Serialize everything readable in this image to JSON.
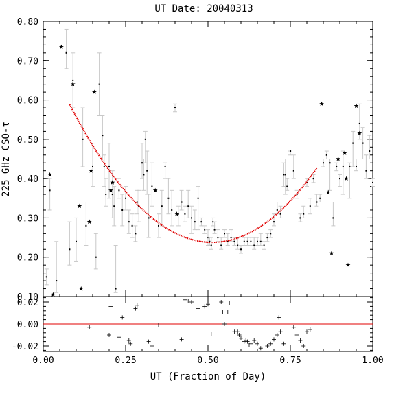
{
  "chart_data": [
    {
      "type": "scatter",
      "title": "UT Date: 20040313",
      "ylabel": "225 GHz CSO-τ",
      "xlabel": "",
      "xlim": [
        0.0,
        1.0
      ],
      "ylim": [
        0.1,
        0.8
      ],
      "y_ticks": [
        "0.10",
        "0.20",
        "0.30",
        "0.40",
        "0.50",
        "0.60",
        "0.70",
        "0.80"
      ],
      "y_tick_values": [
        0.1,
        0.2,
        0.3,
        0.4,
        0.5,
        0.6,
        0.7,
        0.8
      ],
      "series": [
        {
          "marker": "dot-with-errorbar",
          "points": [
            [
              0.01,
              0.15,
              0.13,
              0.17
            ],
            [
              0.02,
              0.37,
              0.32,
              0.4
            ],
            [
              0.04,
              0.14,
              0.11,
              0.24
            ],
            [
              0.07,
              0.72,
              0.68,
              0.78
            ],
            [
              0.08,
              0.22,
              0.18,
              0.29
            ],
            [
              0.09,
              0.65,
              0.58,
              0.72
            ],
            [
              0.1,
              0.24,
              0.19,
              0.3
            ],
            [
              0.12,
              0.5,
              0.43,
              0.58
            ],
            [
              0.13,
              0.28,
              0.23,
              0.34
            ],
            [
              0.15,
              0.43,
              0.38,
              0.49
            ],
            [
              0.16,
              0.2,
              0.17,
              0.26
            ],
            [
              0.17,
              0.64,
              0.56,
              0.72
            ],
            [
              0.18,
              0.51,
              0.45,
              0.56
            ],
            [
              0.185,
              0.43,
              0.38,
              0.46
            ],
            [
              0.19,
              0.36,
              0.33,
              0.4
            ],
            [
              0.2,
              0.43,
              0.35,
              0.49
            ],
            [
              0.21,
              0.36,
              0.3,
              0.42
            ],
            [
              0.215,
              0.33,
              0.28,
              0.38
            ],
            [
              0.22,
              0.12,
              0.11,
              0.23
            ],
            [
              0.23,
              0.37,
              0.35,
              0.4
            ],
            [
              0.24,
              0.32,
              0.28,
              0.36
            ],
            [
              0.25,
              0.35,
              0.32,
              0.38
            ],
            [
              0.26,
              0.29,
              0.26,
              0.32
            ],
            [
              0.27,
              0.28,
              0.25,
              0.31
            ],
            [
              0.28,
              0.26,
              0.24,
              0.28
            ],
            [
              0.285,
              0.34,
              0.31,
              0.37
            ],
            [
              0.29,
              0.33,
              0.29,
              0.37
            ],
            [
              0.3,
              0.44,
              0.4,
              0.49
            ],
            [
              0.305,
              0.41,
              0.37,
              0.45
            ],
            [
              0.31,
              0.5,
              0.44,
              0.52
            ],
            [
              0.315,
              0.42,
              0.36,
              0.47
            ],
            [
              0.32,
              0.3,
              0.25,
              0.36
            ],
            [
              0.33,
              0.38,
              0.33,
              0.44
            ],
            [
              0.35,
              0.28,
              0.25,
              0.31
            ],
            [
              0.36,
              0.33,
              0.28,
              0.37
            ],
            [
              0.37,
              0.43,
              0.4,
              0.44
            ],
            [
              0.38,
              0.35,
              0.31,
              0.4
            ],
            [
              0.39,
              0.32,
              0.28,
              0.37
            ],
            [
              0.4,
              0.58,
              0.57,
              0.59
            ],
            [
              0.41,
              0.31,
              0.28,
              0.33
            ],
            [
              0.42,
              0.34,
              0.32,
              0.37
            ],
            [
              0.43,
              0.31,
              0.29,
              0.33
            ],
            [
              0.44,
              0.33,
              0.3,
              0.37
            ],
            [
              0.45,
              0.3,
              0.26,
              0.33
            ],
            [
              0.46,
              0.29,
              0.27,
              0.32
            ],
            [
              0.47,
              0.35,
              0.27,
              0.38
            ],
            [
              0.48,
              0.29,
              0.28,
              0.3
            ],
            [
              0.49,
              0.27,
              0.26,
              0.28
            ],
            [
              0.5,
              0.25,
              0.23,
              0.27
            ],
            [
              0.505,
              0.24,
              0.23,
              0.25
            ],
            [
              0.51,
              0.23,
              0.22,
              0.25
            ],
            [
              0.515,
              0.29,
              0.28,
              0.3
            ],
            [
              0.52,
              0.27,
              0.26,
              0.29
            ],
            [
              0.53,
              0.25,
              0.24,
              0.27
            ],
            [
              0.54,
              0.23,
              0.22,
              0.25
            ],
            [
              0.55,
              0.26,
              0.25,
              0.27
            ],
            [
              0.56,
              0.24,
              0.23,
              0.26
            ],
            [
              0.57,
              0.25,
              0.24,
              0.27
            ],
            [
              0.58,
              0.24,
              0.23,
              0.25
            ],
            [
              0.59,
              0.23,
              0.22,
              0.25
            ],
            [
              0.6,
              0.22,
              0.21,
              0.23
            ],
            [
              0.61,
              0.24,
              0.23,
              0.25
            ],
            [
              0.62,
              0.24,
              0.23,
              0.25
            ],
            [
              0.63,
              0.24,
              0.23,
              0.25
            ],
            [
              0.64,
              0.23,
              0.22,
              0.25
            ],
            [
              0.65,
              0.24,
              0.23,
              0.25
            ],
            [
              0.66,
              0.24,
              0.23,
              0.26
            ],
            [
              0.67,
              0.23,
              0.22,
              0.24
            ],
            [
              0.68,
              0.25,
              0.24,
              0.26
            ],
            [
              0.69,
              0.26,
              0.25,
              0.27
            ],
            [
              0.7,
              0.29,
              0.28,
              0.31
            ],
            [
              0.71,
              0.32,
              0.31,
              0.34
            ],
            [
              0.72,
              0.31,
              0.3,
              0.33
            ],
            [
              0.73,
              0.41,
              0.38,
              0.44
            ],
            [
              0.735,
              0.41,
              0.36,
              0.45
            ],
            [
              0.74,
              0.38,
              0.37,
              0.4
            ],
            [
              0.75,
              0.47,
              0.46,
              0.47
            ],
            [
              0.76,
              0.42,
              0.4,
              0.46
            ],
            [
              0.77,
              0.36,
              0.35,
              0.37
            ],
            [
              0.78,
              0.3,
              0.29,
              0.31
            ],
            [
              0.79,
              0.31,
              0.3,
              0.33
            ],
            [
              0.8,
              0.39,
              0.38,
              0.4
            ],
            [
              0.81,
              0.33,
              0.31,
              0.35
            ],
            [
              0.82,
              0.4,
              0.39,
              0.41
            ],
            [
              0.83,
              0.34,
              0.33,
              0.36
            ],
            [
              0.84,
              0.35,
              0.34,
              0.36
            ],
            [
              0.85,
              0.44,
              0.43,
              0.45
            ],
            [
              0.86,
              0.46,
              0.45,
              0.47
            ],
            [
              0.87,
              0.44,
              0.37,
              0.45
            ],
            [
              0.88,
              0.3,
              0.28,
              0.34
            ],
            [
              0.89,
              0.43,
              0.42,
              0.44
            ],
            [
              0.9,
              0.4,
              0.38,
              0.41
            ],
            [
              0.91,
              0.43,
              0.36,
              0.47
            ],
            [
              0.93,
              0.43,
              0.35,
              0.44
            ],
            [
              0.94,
              0.49,
              0.43,
              0.52
            ],
            [
              0.95,
              0.43,
              0.42,
              0.45
            ],
            [
              0.96,
              0.54,
              0.5,
              0.59
            ],
            [
              0.97,
              0.49,
              0.45,
              0.53
            ],
            [
              0.98,
              0.42,
              0.4,
              0.46
            ],
            [
              0.99,
              0.47,
              0.45,
              0.51
            ],
            [
              1.0,
              0.39,
              0.38,
              0.4
            ]
          ]
        },
        {
          "marker": "star",
          "points": [
            [
              0.02,
              0.41
            ],
            [
              0.03,
              0.105
            ],
            [
              0.055,
              0.735
            ],
            [
              0.09,
              0.64
            ],
            [
              0.11,
              0.33
            ],
            [
              0.115,
              0.12
            ],
            [
              0.14,
              0.29
            ],
            [
              0.145,
              0.42
            ],
            [
              0.155,
              0.62
            ],
            [
              0.205,
              0.37
            ],
            [
              0.21,
              0.39
            ],
            [
              0.34,
              0.37
            ],
            [
              0.405,
              0.31
            ],
            [
              0.845,
              0.59
            ],
            [
              0.865,
              0.365
            ],
            [
              0.875,
              0.21
            ],
            [
              0.895,
              0.45
            ],
            [
              0.915,
              0.465
            ],
            [
              0.92,
              0.4
            ],
            [
              0.925,
              0.18
            ],
            [
              0.95,
              0.585
            ],
            [
              0.96,
              0.515
            ]
          ]
        },
        {
          "marker": "fit-line",
          "x_range": [
            0.08,
            0.83
          ],
          "coefficients": [
            0.7304,
            -1.9218,
            1.8742
          ]
        }
      ]
    },
    {
      "type": "scatter",
      "title": "",
      "xlabel": "UT (Fraction of Day)",
      "ylabel": "",
      "xlim": [
        0.0,
        1.0
      ],
      "ylim": [
        -0.025,
        0.025
      ],
      "x_ticks": [
        "0.00",
        "0.25",
        "0.50",
        "0.75",
        "1.00"
      ],
      "x_tick_values": [
        0.0,
        0.25,
        0.5,
        0.75,
        1.0
      ],
      "y_ticks": [
        "-0.02",
        "0.00",
        "0.02"
      ],
      "y_tick_values": [
        -0.02,
        0.0,
        0.02
      ],
      "zero_line": 0.0,
      "series": [
        {
          "marker": "plus",
          "points": [
            [
              0.14,
              -0.003
            ],
            [
              0.2,
              -0.01
            ],
            [
              0.205,
              0.016
            ],
            [
              0.23,
              -0.012
            ],
            [
              0.24,
              0.006
            ],
            [
              0.26,
              -0.015
            ],
            [
              0.265,
              -0.018
            ],
            [
              0.28,
              0.014
            ],
            [
              0.285,
              0.017
            ],
            [
              0.32,
              -0.016
            ],
            [
              0.33,
              -0.02
            ],
            [
              0.35,
              -0.001
            ],
            [
              0.42,
              -0.014
            ],
            [
              0.43,
              0.022
            ],
            [
              0.44,
              0.021
            ],
            [
              0.45,
              0.02
            ],
            [
              0.47,
              0.014
            ],
            [
              0.49,
              0.016
            ],
            [
              0.5,
              0.018
            ],
            [
              0.51,
              -0.009
            ],
            [
              0.54,
              0.02
            ],
            [
              0.545,
              0.011
            ],
            [
              0.55,
              0.0
            ],
            [
              0.56,
              0.011
            ],
            [
              0.565,
              0.019
            ],
            [
              0.57,
              0.009
            ],
            [
              0.58,
              -0.007
            ],
            [
              0.59,
              -0.007
            ],
            [
              0.595,
              -0.01
            ],
            [
              0.6,
              -0.013
            ],
            [
              0.61,
              -0.016
            ],
            [
              0.615,
              -0.015
            ],
            [
              0.62,
              -0.016
            ],
            [
              0.625,
              -0.019
            ],
            [
              0.63,
              -0.018
            ],
            [
              0.64,
              -0.015
            ],
            [
              0.65,
              -0.018
            ],
            [
              0.66,
              -0.022
            ],
            [
              0.67,
              -0.021
            ],
            [
              0.68,
              -0.02
            ],
            [
              0.69,
              -0.018
            ],
            [
              0.7,
              -0.014
            ],
            [
              0.71,
              -0.01
            ],
            [
              0.715,
              0.006
            ],
            [
              0.72,
              -0.007
            ],
            [
              0.73,
              -0.018
            ],
            [
              0.76,
              -0.003
            ],
            [
              0.77,
              -0.01
            ],
            [
              0.78,
              -0.015
            ],
            [
              0.79,
              -0.02
            ],
            [
              0.8,
              -0.007
            ],
            [
              0.81,
              -0.005
            ]
          ]
        }
      ]
    }
  ]
}
